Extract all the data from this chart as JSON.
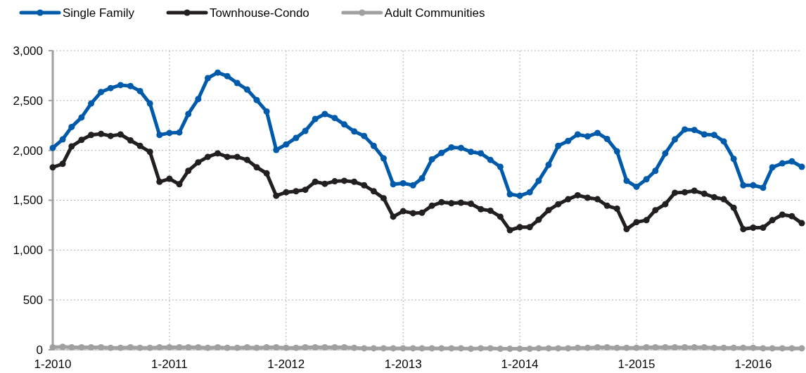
{
  "chart_data": {
    "type": "line",
    "x": [
      "2010-01",
      "2010-02",
      "2010-03",
      "2010-04",
      "2010-05",
      "2010-06",
      "2010-07",
      "2010-08",
      "2010-09",
      "2010-10",
      "2010-11",
      "2010-12",
      "2011-01",
      "2011-02",
      "2011-03",
      "2011-04",
      "2011-05",
      "2011-06",
      "2011-07",
      "2011-08",
      "2011-09",
      "2011-10",
      "2011-11",
      "2011-12",
      "2012-01",
      "2012-02",
      "2012-03",
      "2012-04",
      "2012-05",
      "2012-06",
      "2012-07",
      "2012-08",
      "2012-09",
      "2012-10",
      "2012-11",
      "2012-12",
      "2013-01",
      "2013-02",
      "2013-03",
      "2013-04",
      "2013-05",
      "2013-06",
      "2013-07",
      "2013-08",
      "2013-09",
      "2013-10",
      "2013-11",
      "2013-12",
      "2014-01",
      "2014-02",
      "2014-03",
      "2014-04",
      "2014-05",
      "2014-06",
      "2014-07",
      "2014-08",
      "2014-09",
      "2014-10",
      "2014-11",
      "2014-12",
      "2015-01",
      "2015-02",
      "2015-03",
      "2015-04",
      "2015-05",
      "2015-06",
      "2015-07",
      "2015-08",
      "2015-09",
      "2015-10",
      "2015-11",
      "2015-12",
      "2016-01",
      "2016-02",
      "2016-03",
      "2016-04",
      "2016-05",
      "2016-06"
    ],
    "series": [
      {
        "name": "Single Family",
        "color": "#005aaa",
        "values": [
          2025,
          2110,
          2235,
          2330,
          2470,
          2585,
          2625,
          2655,
          2645,
          2595,
          2470,
          2155,
          2175,
          2180,
          2365,
          2515,
          2725,
          2780,
          2745,
          2675,
          2610,
          2505,
          2390,
          2005,
          2060,
          2125,
          2195,
          2315,
          2365,
          2325,
          2260,
          2190,
          2145,
          2045,
          1920,
          1660,
          1670,
          1650,
          1720,
          1910,
          1975,
          2030,
          2025,
          1985,
          1970,
          1905,
          1835,
          1560,
          1545,
          1580,
          1695,
          1855,
          2045,
          2095,
          2160,
          2140,
          2175,
          2115,
          1990,
          1695,
          1635,
          1710,
          1795,
          1970,
          2110,
          2210,
          2205,
          2160,
          2155,
          2090,
          1915,
          1650,
          1650,
          1625,
          1830,
          1870,
          1890,
          1835
        ]
      },
      {
        "name": "Townhouse-Condo",
        "color": "#231f20",
        "values": [
          1830,
          1865,
          2040,
          2105,
          2155,
          2165,
          2145,
          2160,
          2100,
          2045,
          1985,
          1685,
          1715,
          1660,
          1795,
          1880,
          1935,
          1970,
          1935,
          1935,
          1905,
          1830,
          1770,
          1545,
          1580,
          1590,
          1605,
          1685,
          1665,
          1690,
          1695,
          1685,
          1650,
          1590,
          1520,
          1335,
          1390,
          1370,
          1375,
          1445,
          1480,
          1470,
          1475,
          1465,
          1410,
          1395,
          1335,
          1200,
          1230,
          1230,
          1305,
          1400,
          1460,
          1510,
          1550,
          1525,
          1510,
          1445,
          1415,
          1210,
          1280,
          1300,
          1400,
          1460,
          1575,
          1580,
          1595,
          1565,
          1530,
          1510,
          1425,
          1210,
          1225,
          1225,
          1300,
          1355,
          1340,
          1270
        ]
      },
      {
        "name": "Adult Communities",
        "color": "#a0a0a0",
        "values": [
          25,
          30,
          25,
          25,
          25,
          25,
          20,
          20,
          25,
          20,
          20,
          25,
          25,
          25,
          25,
          25,
          20,
          25,
          20,
          20,
          25,
          20,
          25,
          25,
          20,
          20,
          25,
          25,
          25,
          25,
          25,
          20,
          15,
          15,
          15,
          15,
          15,
          15,
          15,
          15,
          15,
          15,
          15,
          10,
          15,
          15,
          10,
          10,
          10,
          10,
          15,
          15,
          15,
          15,
          20,
          20,
          25,
          25,
          20,
          20,
          20,
          25,
          25,
          25,
          25,
          25,
          25,
          25,
          20,
          20,
          20,
          20,
          20,
          15,
          15,
          15,
          15,
          15
        ]
      }
    ],
    "xlim": [
      "2010-01",
      "2016-06"
    ],
    "xticks": [
      {
        "value": "2010-01",
        "label": "1-2010"
      },
      {
        "value": "2011-01",
        "label": "1-2011"
      },
      {
        "value": "2012-01",
        "label": "1-2012"
      },
      {
        "value": "2013-01",
        "label": "1-2013"
      },
      {
        "value": "2014-01",
        "label": "1-2014"
      },
      {
        "value": "2015-01",
        "label": "1-2015"
      },
      {
        "value": "2016-01",
        "label": "1-2016"
      }
    ],
    "ylim": [
      0,
      3000
    ],
    "yticks": [
      {
        "value": 0,
        "label": "0"
      },
      {
        "value": 500,
        "label": "500"
      },
      {
        "value": 1000,
        "label": "1,000"
      },
      {
        "value": 1500,
        "label": "1,500"
      },
      {
        "value": 2000,
        "label": "2,000"
      },
      {
        "value": 2500,
        "label": "2,500"
      },
      {
        "value": 3000,
        "label": "3,000"
      }
    ],
    "grid": true,
    "legend": "top",
    "marker": "circle",
    "line_style": "solid"
  }
}
